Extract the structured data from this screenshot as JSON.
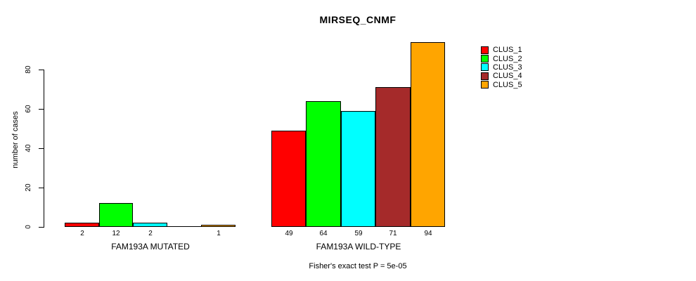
{
  "chart_data": {
    "type": "bar",
    "title": "MIRSEQ_CNMF",
    "ylabel": "number of cases",
    "xlabel": "",
    "yticks": [
      "0",
      "20",
      "40",
      "60",
      "80"
    ],
    "ytick_values": [
      0,
      20,
      40,
      60,
      80
    ],
    "ylim": [
      0,
      95
    ],
    "grid": false,
    "legend_position": "right-outside",
    "bar_border_color": "#000000",
    "background_color": "#ffffff",
    "categories": [
      "FAM193A MUTATED",
      "FAM193A WILD-TYPE"
    ],
    "series": [
      {
        "name": "CLUS_1",
        "color": "#ff0000",
        "values": [
          2,
          49
        ]
      },
      {
        "name": "CLUS_2",
        "color": "#00ff00",
        "values": [
          12,
          64
        ]
      },
      {
        "name": "CLUS_3",
        "color": "#00ffff",
        "values": [
          2,
          59
        ]
      },
      {
        "name": "CLUS_4",
        "color": "#a52a2a",
        "values": [
          0,
          71
        ]
      },
      {
        "name": "CLUS_5",
        "color": "#ffa500",
        "values": [
          1,
          94
        ]
      }
    ],
    "bar_value_labels": [
      [
        "2",
        "12",
        "2",
        "",
        "1"
      ],
      [
        "49",
        "64",
        "59",
        "71",
        "94"
      ]
    ],
    "legend": [
      {
        "label": "CLUS_1",
        "color": "#ff0000"
      },
      {
        "label": "CLUS_2",
        "color": "#00ff00"
      },
      {
        "label": "CLUS_3",
        "color": "#00ffff"
      },
      {
        "label": "CLUS_4",
        "color": "#a52a2a"
      },
      {
        "label": "CLUS_5",
        "color": "#ffa500"
      }
    ],
    "annotation": "Fisher's exact test P = 5e-05"
  }
}
